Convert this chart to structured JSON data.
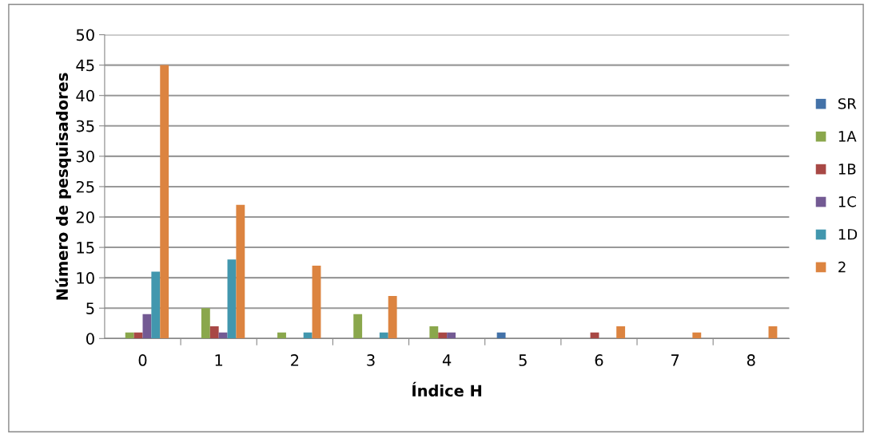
{
  "chart_data": {
    "type": "bar",
    "xlabel": "Índice H",
    "ylabel": "Número de pesquisadores",
    "categories": [
      "0",
      "1",
      "2",
      "3",
      "4",
      "5",
      "6",
      "7",
      "8"
    ],
    "series": [
      {
        "name": "SR",
        "color": "#4372a8",
        "values": [
          0,
          0,
          0,
          0,
          0,
          1,
          0,
          0,
          0
        ]
      },
      {
        "name": "1A",
        "color": "#8aa74c",
        "values": [
          1,
          5,
          1,
          4,
          2,
          0,
          0,
          0,
          0
        ]
      },
      {
        "name": "1B",
        "color": "#a84845",
        "values": [
          1,
          2,
          0,
          0,
          1,
          0,
          1,
          0,
          0
        ]
      },
      {
        "name": "1C",
        "color": "#735a93",
        "values": [
          4,
          1,
          0,
          0,
          1,
          0,
          0,
          0,
          0
        ]
      },
      {
        "name": "1D",
        "color": "#4297ae",
        "values": [
          11,
          13,
          1,
          1,
          0,
          0,
          0,
          0,
          0
        ]
      },
      {
        "name": "2",
        "color": "#dc8440",
        "values": [
          45,
          22,
          12,
          7,
          0,
          0,
          2,
          1,
          2
        ]
      }
    ],
    "ylim": [
      0,
      50
    ],
    "yticks": [
      0,
      5,
      10,
      15,
      20,
      25,
      30,
      35,
      40,
      45,
      50
    ],
    "grid": "y",
    "legend": "right"
  }
}
